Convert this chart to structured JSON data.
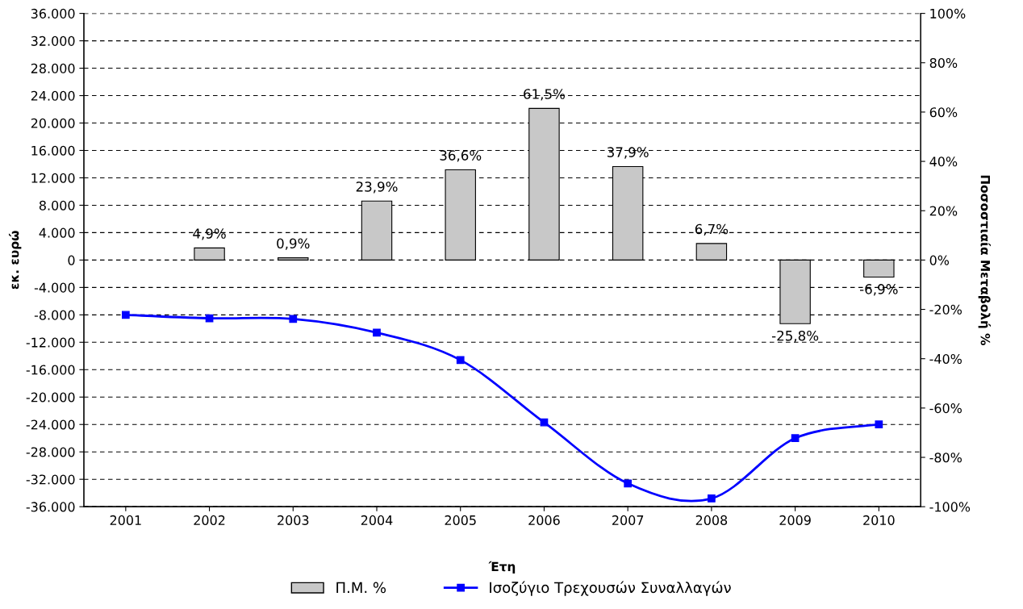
{
  "chart_data": {
    "type": "bar",
    "xlabel": "Έτη",
    "ylabel": "εκ. ευρώ",
    "y2label": "Ποσοστιαία Μεταβολή %",
    "categories": [
      "2001",
      "2002",
      "2003",
      "2004",
      "2005",
      "2006",
      "2007",
      "2008",
      "2009",
      "2010"
    ],
    "series": [
      {
        "name": "Π.Μ. %",
        "axis": "y2",
        "color": "#c8c8c8",
        "values": [
          null,
          4.9,
          0.9,
          23.9,
          36.6,
          61.5,
          37.9,
          6.7,
          -25.8,
          -6.9
        ],
        "value_labels": [
          null,
          "4,9%",
          "0,9%",
          "23,9%",
          "36,6%",
          "61,5%",
          "37,9%",
          "6,7%",
          "-25,8%",
          "-6,9%"
        ]
      },
      {
        "name": "Ισοζύγιο Τρεχουσών Συναλλαγών",
        "type": "line",
        "axis": "y",
        "color": "#0000ff",
        "marker": "square",
        "line_style": "solid",
        "values": [
          -8000,
          -8500,
          -8600,
          -10600,
          -14600,
          -23700,
          -32600,
          -34800,
          -26000,
          -24000
        ]
      }
    ],
    "ylim": [
      -36000,
      36000
    ],
    "yticks": [
      {
        "value": -36000,
        "label": "-36.000"
      },
      {
        "value": -32000,
        "label": "-32.000"
      },
      {
        "value": -28000,
        "label": "-28.000"
      },
      {
        "value": -24000,
        "label": "-24.000"
      },
      {
        "value": -20000,
        "label": "-20.000"
      },
      {
        "value": -16000,
        "label": "-16.000"
      },
      {
        "value": -12000,
        "label": "-12.000"
      },
      {
        "value": -8000,
        "label": "-8.000"
      },
      {
        "value": -4000,
        "label": "-4.000"
      },
      0,
      {
        "value": 4000,
        "label": "4.000"
      },
      {
        "value": 8000,
        "label": "8.000"
      },
      {
        "value": 12000,
        "label": "12.000"
      },
      {
        "value": 16000,
        "label": "16.000"
      },
      {
        "value": 20000,
        "label": "20.000"
      },
      {
        "value": 24000,
        "label": "24.000"
      },
      {
        "value": 28000,
        "label": "28.000"
      },
      {
        "value": 32000,
        "label": "32.000"
      },
      {
        "value": 36000,
        "label": "36.000"
      }
    ],
    "y2lim": [
      -100,
      100
    ],
    "y2ticks": [
      {
        "value": -100,
        "label": "-100%"
      },
      {
        "value": -80,
        "label": "-80%"
      },
      {
        "value": -60,
        "label": "-60%"
      },
      {
        "value": -40,
        "label": "-40%"
      },
      {
        "value": -20,
        "label": "-20%"
      },
      {
        "value": 0,
        "label": "0%"
      },
      {
        "value": 20,
        "label": "20%"
      },
      {
        "value": 40,
        "label": "40%"
      },
      {
        "value": 60,
        "label": "60%"
      },
      {
        "value": 80,
        "label": "80%"
      },
      {
        "value": 100,
        "label": "100%"
      }
    ],
    "grid": "y",
    "legend": "bottom"
  }
}
